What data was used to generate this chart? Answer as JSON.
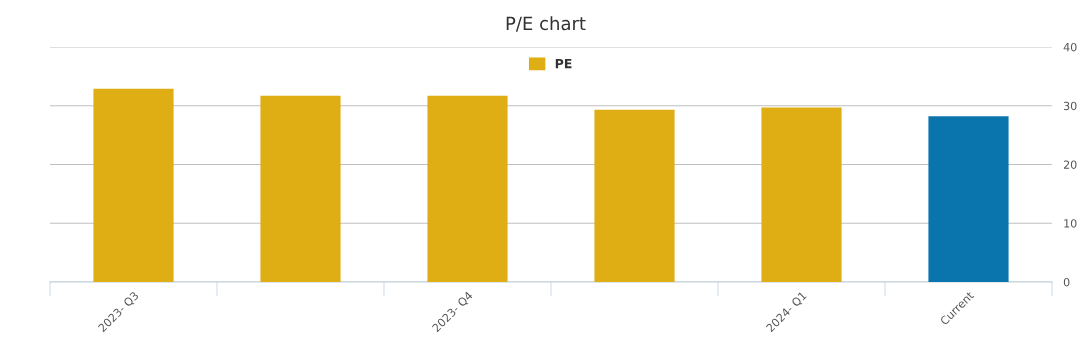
{
  "chart_data": {
    "type": "bar",
    "title": "P/E chart",
    "categories": [
      "2023- Q3",
      null,
      "2023- Q4",
      null,
      "2024- Q1",
      "Current"
    ],
    "series": [
      {
        "name": "PE",
        "color": "#dfae14",
        "colors": [
          "#dfae14",
          "#dfae14",
          "#dfae14",
          "#dfae14",
          "#dfae14",
          "#0a74ad"
        ],
        "values": [
          32.9,
          31.7,
          31.7,
          29.3,
          29.7,
          28.2
        ]
      }
    ],
    "ylim": [
      0,
      40
    ],
    "yticks": [
      0,
      10,
      20,
      30,
      40
    ],
    "grid": "y",
    "legend": "top"
  }
}
